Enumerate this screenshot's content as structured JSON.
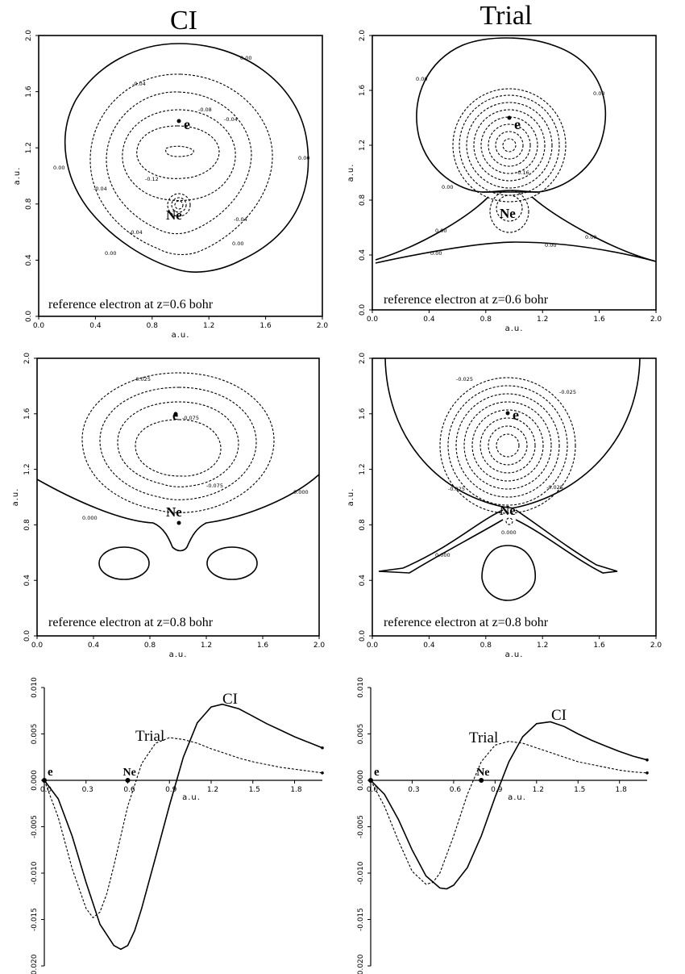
{
  "column_titles": [
    "CI",
    "Trial"
  ],
  "chart_data": [
    {
      "type": "contour",
      "panel": "CI, z=0.6",
      "xlabel": "a.u.",
      "ylabel": "a.u.",
      "xlim": [
        0,
        2
      ],
      "ylim": [
        0,
        2
      ],
      "xticks": [
        "0.0",
        "0.4",
        "0.8",
        "1.2",
        "1.6",
        "2.0"
      ],
      "yticks": [
        "0.0",
        "0.4",
        "0.8",
        "1.2",
        "1.6",
        "2.0"
      ],
      "annotation": "reference electron at z=0.6 bohr",
      "markers": [
        {
          "label": "e",
          "x": 1.0,
          "y": 1.4
        },
        {
          "label": "Ne",
          "x": 1.0,
          "y": 0.8
        }
      ],
      "contour_labels": [
        "0.00",
        "-0.04",
        "-0.08",
        "-0.12"
      ]
    },
    {
      "type": "contour",
      "panel": "Trial, z=0.6",
      "xlabel": "a.u.",
      "ylabel": "a.u.",
      "xlim": [
        0,
        2
      ],
      "ylim": [
        0,
        2
      ],
      "xticks": [
        "0.0",
        "0.4",
        "0.8",
        "1.2",
        "1.6",
        "2.0"
      ],
      "yticks": [
        "0.0",
        "0.4",
        "0.8",
        "1.2",
        "1.6",
        "2.0"
      ],
      "annotation": "reference electron at z=0.6 bohr",
      "markers": [
        {
          "label": "e",
          "x": 1.0,
          "y": 1.4
        },
        {
          "label": "Ne",
          "x": 1.0,
          "y": 0.8
        }
      ],
      "contour_labels": [
        "0.00",
        "-0.16"
      ]
    },
    {
      "type": "contour",
      "panel": "CI, z=0.8",
      "xlabel": "a.u.",
      "ylabel": "a.u.",
      "xlim": [
        0,
        2
      ],
      "ylim": [
        0,
        2
      ],
      "xticks": [
        "0.0",
        "0.4",
        "0.8",
        "1.2",
        "1.6",
        "2.0"
      ],
      "yticks": [
        "0.0",
        "0.4",
        "0.8",
        "1.2",
        "1.6",
        "2.0"
      ],
      "annotation": "reference electron at z=0.8 bohr",
      "markers": [
        {
          "label": "e",
          "x": 1.0,
          "y": 1.6
        },
        {
          "label": "Ne",
          "x": 1.0,
          "y": 0.8
        }
      ],
      "contour_labels": [
        "0.000",
        "-0.025",
        "-0.075"
      ]
    },
    {
      "type": "contour",
      "panel": "Trial, z=0.8",
      "xlabel": "a.u.",
      "ylabel": "a.u.",
      "xlim": [
        0,
        2
      ],
      "ylim": [
        0,
        2
      ],
      "xticks": [
        "0.0",
        "0.4",
        "0.8",
        "1.2",
        "1.6",
        "2.0"
      ],
      "yticks": [
        "0.0",
        "0.4",
        "0.8",
        "1.2",
        "1.6",
        "2.0"
      ],
      "annotation": "reference electron at z=0.8 bohr",
      "markers": [
        {
          "label": "e",
          "x": 1.0,
          "y": 1.6
        },
        {
          "label": "Ne",
          "x": 1.0,
          "y": 0.8
        }
      ],
      "contour_labels": [
        "0.000",
        "-0.025"
      ]
    },
    {
      "type": "line",
      "panel": "cut, z=0.6",
      "xlabel": "a.u.",
      "xlim": [
        0,
        2.0
      ],
      "ylim": [
        -0.02,
        0.01
      ],
      "xticks": [
        "0.0",
        "0.3",
        "0.6",
        "0.9",
        "1.2",
        "1.5",
        "1.8"
      ],
      "yticks": [
        "0.010",
        "0.005",
        "0.000",
        "-0.005",
        "-0.010",
        "-0.015",
        "-0.020"
      ],
      "markers": [
        {
          "label": "e",
          "x": 0.0
        },
        {
          "label": "Ne",
          "x": 0.6
        }
      ],
      "series": [
        {
          "name": "CI",
          "style": "solid",
          "x": [
            0,
            0.1,
            0.2,
            0.3,
            0.4,
            0.5,
            0.55,
            0.6,
            0.65,
            0.7,
            0.8,
            0.9,
            1.0,
            1.1,
            1.2,
            1.28,
            1.4,
            1.5,
            1.6,
            1.7,
            1.8,
            1.9,
            2.0
          ],
          "y": [
            0,
            -0.002,
            -0.006,
            -0.011,
            -0.0155,
            -0.0178,
            -0.0182,
            -0.0178,
            -0.0162,
            -0.0138,
            -0.0083,
            -0.0027,
            0.0025,
            0.0062,
            0.0079,
            0.0082,
            0.0077,
            0.0069,
            0.0061,
            0.0054,
            0.0047,
            0.0041,
            0.0035
          ]
        },
        {
          "name": "Trial",
          "style": "dashed",
          "x": [
            0,
            0.1,
            0.2,
            0.3,
            0.35,
            0.4,
            0.45,
            0.5,
            0.6,
            0.7,
            0.8,
            0.9,
            1.0,
            1.1,
            1.2,
            1.3,
            1.4,
            1.5,
            1.6,
            1.7,
            1.8,
            1.9,
            2.0
          ],
          "y": [
            0,
            -0.004,
            -0.0095,
            -0.0138,
            -0.0148,
            -0.0142,
            -0.0122,
            -0.0092,
            -0.0028,
            0.0018,
            0.004,
            0.0046,
            0.0044,
            0.004,
            0.0034,
            0.0029,
            0.0024,
            0.002,
            0.0017,
            0.0014,
            0.0012,
            0.001,
            0.0008
          ]
        }
      ]
    },
    {
      "type": "line",
      "panel": "cut, z=0.8",
      "xlabel": "a.u.",
      "xlim": [
        0,
        2.0
      ],
      "ylim": [
        -0.02,
        0.01
      ],
      "xticks": [
        "0.0",
        "0.3",
        "0.6",
        "0.9",
        "1.2",
        "1.5",
        "1.8"
      ],
      "yticks": [
        "0.010",
        "0.005",
        "0.000",
        "-0.005",
        "-0.010",
        "-0.015",
        "-0.020"
      ],
      "markers": [
        {
          "label": "e",
          "x": 0.0
        },
        {
          "label": "Ne",
          "x": 0.8
        }
      ],
      "series": [
        {
          "name": "CI",
          "style": "solid",
          "x": [
            0,
            0.1,
            0.2,
            0.3,
            0.4,
            0.5,
            0.55,
            0.6,
            0.7,
            0.8,
            0.9,
            1.0,
            1.1,
            1.2,
            1.3,
            1.4,
            1.5,
            1.6,
            1.7,
            1.8,
            1.9,
            2.0
          ],
          "y": [
            0,
            -0.0015,
            -0.0042,
            -0.0075,
            -0.0103,
            -0.0116,
            -0.0117,
            -0.0113,
            -0.0094,
            -0.006,
            -0.0018,
            0.002,
            0.0047,
            0.0061,
            0.0063,
            0.0058,
            0.005,
            0.0043,
            0.0037,
            0.0031,
            0.0026,
            0.0022
          ]
        },
        {
          "name": "Trial",
          "style": "dashed",
          "x": [
            0,
            0.1,
            0.2,
            0.3,
            0.4,
            0.45,
            0.5,
            0.6,
            0.7,
            0.8,
            0.9,
            1.0,
            1.1,
            1.2,
            1.3,
            1.4,
            1.5,
            1.6,
            1.7,
            1.8,
            1.9,
            2.0
          ],
          "y": [
            0,
            -0.0028,
            -0.0065,
            -0.0098,
            -0.0112,
            -0.011,
            -0.01,
            -0.006,
            -0.0015,
            0.002,
            0.0038,
            0.0042,
            0.004,
            0.0035,
            0.003,
            0.0025,
            0.002,
            0.0017,
            0.0014,
            0.0011,
            0.0009,
            0.0008
          ]
        }
      ]
    }
  ]
}
